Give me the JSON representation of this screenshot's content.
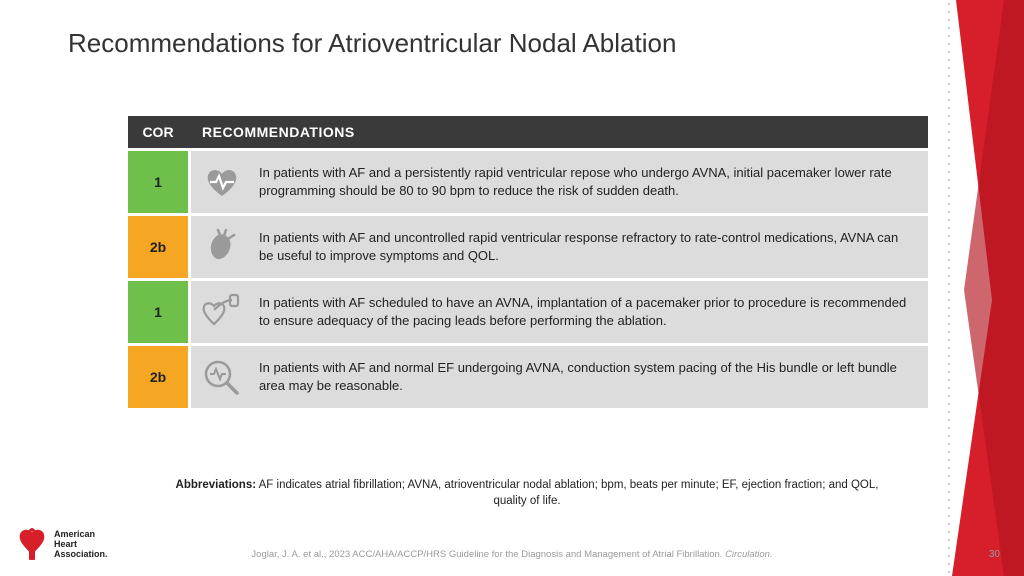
{
  "title": "Recommendations for Atrioventricular Nodal Ablation",
  "header": {
    "cor": "COR",
    "rec": "RECOMMENDATIONS"
  },
  "cor_colors": {
    "green": "#6fbf4b",
    "orange": "#f5a623"
  },
  "rows": [
    {
      "cor": "1",
      "color": "green",
      "icon": "heartbeat",
      "text": "In patients with AF and a persistently rapid ventricular repose who undergo AVNA, initial pacemaker lower rate programming should be 80 to 90 bpm to reduce the risk of sudden death."
    },
    {
      "cor": "2b",
      "color": "orange",
      "icon": "heart-organ",
      "text": "In patients with AF and uncontrolled rapid ventricular response refractory to rate-control medications, AVNA can be useful to improve symptoms and QOL."
    },
    {
      "cor": "1",
      "color": "green",
      "icon": "pacemaker",
      "text": "In patients with AF scheduled to have an AVNA, implantation of a pacemaker prior to procedure is recommended to ensure adequacy of the pacing leads before performing the ablation."
    },
    {
      "cor": "2b",
      "color": "orange",
      "icon": "magnify-pulse",
      "text": "In patients with AF and  normal EF undergoing AVNA, conduction system pacing of the His bundle or left bundle area may be reasonable."
    }
  ],
  "abbrev_label": "Abbreviations:",
  "abbrev_text": " AF indicates atrial fibrillation; AVNA, atrioventricular nodal ablation; bpm, beats per minute; EF, ejection fraction; and QOL, quality of life.",
  "citation_main": "Joglar, J. A. et al., 2023 ACC/AHA/ACCP/HRS Guideline for the Diagnosis and Management of Atrial Fibrillation. ",
  "citation_ital": "Circulation.",
  "page_number": "30",
  "logo": {
    "line1": "American",
    "line2": "Heart",
    "line3": "Association."
  },
  "accent_color": "#d61f2b",
  "header_bg": "#3a3a3a",
  "row_bg": "#dcdcdc"
}
